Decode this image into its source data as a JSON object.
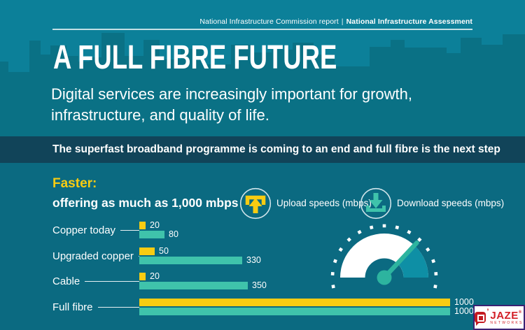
{
  "header": {
    "report_label": "National Infrastructure Commission report",
    "separator": "|",
    "assessment_label": "National Infrastructure Assessment"
  },
  "hero": {
    "title": "A FULL FIBRE FUTURE",
    "subtitle_line1": "Digital services are increasingly important for growth,",
    "subtitle_line2": "infrastructure, and quality of life."
  },
  "banner": {
    "text": "The superfast broadband programme is coming to an end and full fibre is the next step"
  },
  "section": {
    "heading": "Faster:",
    "subheading": "offering as much as 1,000 mbps"
  },
  "legend": {
    "upload": {
      "label": "Upload speeds (mbps)",
      "icon": "upload-arrow-icon",
      "color": "#f8cc12"
    },
    "download": {
      "label": "Download speeds (mbps)",
      "icon": "download-arrow-icon",
      "color": "#3fc3ab"
    }
  },
  "chart_data": {
    "type": "bar",
    "orientation": "horizontal",
    "title": "Faster: offering as much as 1,000 mbps",
    "categories": [
      "Copper today",
      "Upgraded copper",
      "Cable",
      "Full fibre"
    ],
    "series": [
      {
        "name": "Upload speeds (mbps)",
        "color": "#f8cc12",
        "values": [
          20,
          50,
          20,
          1000
        ]
      },
      {
        "name": "Download speeds (mbps)",
        "color": "#3fc3ab",
        "values": [
          80,
          330,
          350,
          1000
        ]
      }
    ],
    "value_labels_shown": true,
    "xlim": [
      0,
      1000
    ],
    "unit": "mbps",
    "legend_position": "top",
    "grid": false
  },
  "gauge": {
    "type": "speedometer",
    "needle_angle_deg": 47,
    "filled_sector_deg": [
      0,
      47
    ],
    "tick_count": 15,
    "tick_start_deg": 190,
    "tick_end_deg": -10,
    "arc_color": "#ffffff",
    "sector_color": "#0e8fa5",
    "needle_color": "#2db49f"
  },
  "logo": {
    "apostrophe": "’",
    "brand": "JAZE",
    "registered": "®",
    "suffix": "NETWORKS"
  },
  "colors": {
    "sky": "#0c8099",
    "skyline": "#0a7185",
    "banner": "#114459",
    "body": "#0b6a81",
    "accent_yellow": "#f8cc12",
    "accent_teal": "#3fc3ab"
  }
}
